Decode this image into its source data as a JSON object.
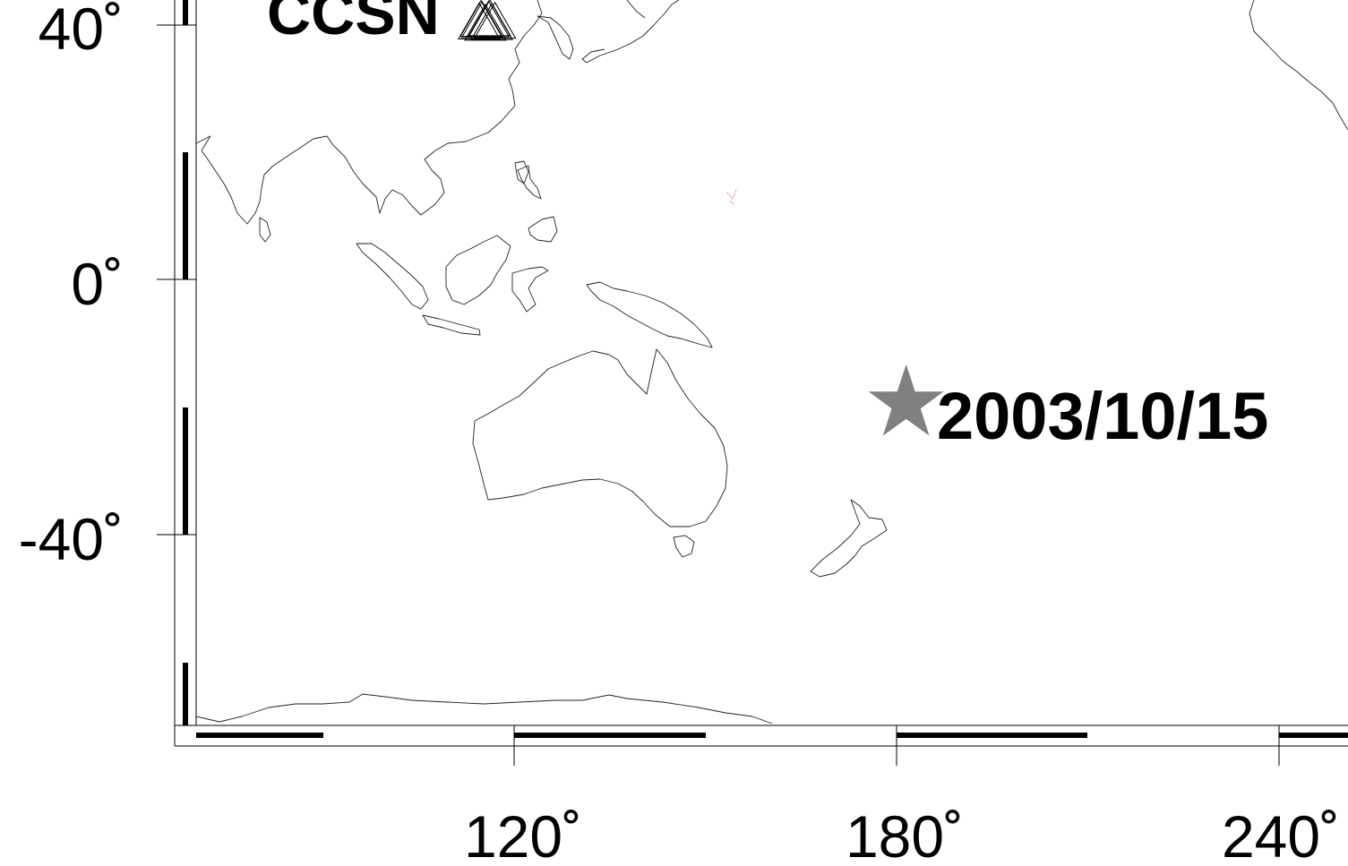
{
  "map": {
    "y_ticks": [
      {
        "value": 40,
        "label": "40˚"
      },
      {
        "value": 0,
        "label": "0˚"
      },
      {
        "value": -40,
        "label": "-40˚"
      }
    ],
    "x_ticks": [
      {
        "value": 120,
        "label": "120˚"
      },
      {
        "value": 180,
        "label": "180˚"
      },
      {
        "value": 240,
        "label": "240˚"
      }
    ],
    "network_label": "CCSN",
    "event": {
      "label": "2003/10/15",
      "lon": 181.5,
      "lat": -19.5,
      "color": "#808080",
      "symbol": "star-icon"
    },
    "station_symbol": "triangle-icon",
    "stations": [
      {
        "lon": 114.5,
        "lat": 40.5
      },
      {
        "lon": 115.0,
        "lat": 40.7
      },
      {
        "lon": 115.5,
        "lat": 40.3
      },
      {
        "lon": 116.0,
        "lat": 40.8
      },
      {
        "lon": 116.5,
        "lat": 40.4
      },
      {
        "lon": 117.0,
        "lat": 40.6
      },
      {
        "lon": 114.8,
        "lat": 40.9
      },
      {
        "lon": 116.2,
        "lat": 41.0
      }
    ],
    "colors": {
      "coast": "#222222",
      "frame": "#000000"
    }
  }
}
